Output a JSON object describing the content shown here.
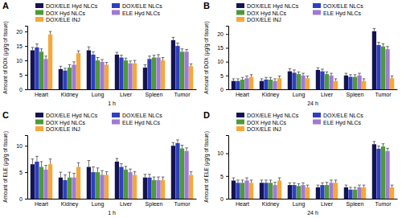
{
  "chart_data": [
    {
      "type": "bar",
      "title": "A",
      "x_label": "1 h",
      "y_label": "Amount of DOX (μg/g of tissue)",
      "categories": [
        "Heart",
        "Kidney",
        "Lung",
        "Liver",
        "Spleen",
        "Tumor"
      ],
      "ylim": [
        0,
        22
      ],
      "yticks": [
        0,
        5,
        10,
        15,
        20
      ],
      "legend": "top",
      "series": [
        {
          "name": "DOX/ELE Hyd NLCs",
          "color": "#141452",
          "values": [
            13.5,
            7,
            13.5,
            12,
            7.5,
            17
          ],
          "errors": [
            1,
            1,
            1.2,
            0.8,
            1,
            1
          ]
        },
        {
          "name": "DOX/ELE NLCs",
          "color": "#2f3fbf",
          "values": [
            14.5,
            6.5,
            12,
            11,
            10.5,
            15
          ],
          "errors": [
            1.2,
            0.8,
            1,
            0.8,
            1,
            1
          ]
        },
        {
          "name": "DOX Hyd NLCs",
          "color": "#4e9a3a",
          "values": [
            13,
            7.5,
            10,
            10,
            11,
            13
          ],
          "errors": [
            1,
            1,
            1,
            0.8,
            0.8,
            1
          ]
        },
        {
          "name": "ELE Hyd NLCs",
          "color": "#a07ad4",
          "values": [
            10.5,
            8.5,
            9.5,
            9,
            11,
            13
          ],
          "errors": [
            1,
            1,
            0.8,
            0.8,
            1,
            0.8
          ]
        },
        {
          "name": "DOX/ELE INJ",
          "color": "#f6a83a",
          "values": [
            19,
            12.5,
            8.5,
            9,
            10,
            8
          ],
          "errors": [
            1,
            0.8,
            0.8,
            1,
            1,
            0.8
          ]
        }
      ]
    },
    {
      "type": "bar",
      "title": "B",
      "x_label": "24 h",
      "y_label": "Amount of DOX (μg/g of tissue)",
      "categories": [
        "Heart",
        "Kidney",
        "Lung",
        "Liver",
        "Spleen",
        "Tumor"
      ],
      "ylim": [
        0,
        23
      ],
      "yticks": [
        0,
        5,
        10,
        15,
        20
      ],
      "legend": "top",
      "series": [
        {
          "name": "DOX/ELE Hyd NLCs",
          "color": "#141452",
          "values": [
            3,
            3,
            6.5,
            7,
            5,
            21
          ],
          "errors": [
            0.8,
            0.8,
            1,
            0.8,
            0.8,
            1
          ]
        },
        {
          "name": "DOX/ELE NLCs",
          "color": "#2f3fbf",
          "values": [
            3,
            3.5,
            6,
            6.5,
            4.5,
            16
          ],
          "errors": [
            0.8,
            0.8,
            1,
            0.8,
            0.8,
            1
          ]
        },
        {
          "name": "DOX Hyd NLCs",
          "color": "#4e9a3a",
          "values": [
            3.5,
            3.5,
            5.5,
            5.5,
            4.5,
            15.5
          ],
          "errors": [
            0.8,
            0.8,
            0.8,
            0.8,
            0.8,
            1
          ]
        },
        {
          "name": "ELE Hyd NLCs",
          "color": "#a07ad4",
          "values": [
            4,
            3,
            5,
            5,
            5,
            14.5
          ],
          "errors": [
            0.8,
            0.8,
            0.8,
            0.8,
            0.8,
            1
          ]
        },
        {
          "name": "DOX/ELE INJ",
          "color": "#f6a83a",
          "values": [
            4.5,
            4,
            4,
            3,
            3,
            4
          ],
          "errors": [
            0.8,
            0.8,
            0.8,
            0.8,
            0.8,
            0.8
          ]
        }
      ]
    },
    {
      "type": "bar",
      "title": "C",
      "x_label": "1 h",
      "y_label": "Amount of ELE (μg/g of tissue)",
      "categories": [
        "Heart",
        "Kidney",
        "Lung",
        "Liver",
        "Spleen",
        "Tumor"
      ],
      "ylim": [
        0,
        12
      ],
      "yticks": [
        0,
        5,
        10
      ],
      "legend": "top",
      "series": [
        {
          "name": "DOX/ELE Hyd NLCs",
          "color": "#141452",
          "values": [
            6.5,
            4,
            6,
            7,
            4,
            10
          ],
          "errors": [
            1,
            1,
            1.2,
            0.6,
            0.6,
            0.6
          ]
        },
        {
          "name": "DOX/ELE NLCs",
          "color": "#2f3fbf",
          "values": [
            7,
            3.5,
            5,
            6,
            4,
            10.5
          ],
          "errors": [
            1,
            1,
            1,
            0.6,
            0.6,
            0.6
          ]
        },
        {
          "name": "DOX Hyd NLCs",
          "color": "#4e9a3a",
          "values": [
            6,
            4,
            5,
            5.5,
            3.5,
            9.5
          ],
          "errors": [
            1,
            1,
            0.8,
            0.6,
            0.6,
            0.6
          ]
        },
        {
          "name": "ELE Hyd NLCs",
          "color": "#a07ad4",
          "values": [
            5.5,
            4,
            4.5,
            5,
            3.5,
            9
          ],
          "errors": [
            0.8,
            0.8,
            0.8,
            0.6,
            0.6,
            0.6
          ]
        },
        {
          "name": "DOX/ELE INJ",
          "color": "#f6a83a",
          "values": [
            6.5,
            6,
            4.5,
            4.5,
            3.5,
            4.5
          ],
          "errors": [
            1,
            0.8,
            0.6,
            0.6,
            0.6,
            0.6
          ]
        }
      ]
    },
    {
      "type": "bar",
      "title": "D",
      "x_label": "24 h",
      "y_label": "Amount of ELE (μg/g of tissue)",
      "categories": [
        "Heart",
        "Kidney",
        "Lung",
        "Liver",
        "Spleen",
        "Tumor"
      ],
      "ylim": [
        0,
        14
      ],
      "yticks": [
        0,
        5,
        10
      ],
      "legend": "top",
      "series": [
        {
          "name": "DOX/ELE Hyd NLCs",
          "color": "#141452",
          "values": [
            4,
            3.5,
            3,
            2.5,
            2.5,
            12
          ],
          "errors": [
            0.6,
            0.6,
            0.5,
            0.5,
            0.5,
            0.6
          ]
        },
        {
          "name": "DOX/ELE NLCs",
          "color": "#2f3fbf",
          "values": [
            3.5,
            3.5,
            3,
            3,
            2,
            11
          ],
          "errors": [
            0.6,
            0.6,
            0.5,
            0.5,
            0.5,
            0.6
          ]
        },
        {
          "name": "DOX Hyd NLCs",
          "color": "#4e9a3a",
          "values": [
            3.5,
            3.5,
            2.8,
            3,
            2,
            11.5
          ],
          "errors": [
            0.6,
            0.6,
            0.5,
            0.6,
            0.5,
            0.6
          ]
        },
        {
          "name": "ELE Hyd NLCs",
          "color": "#a07ad4",
          "values": [
            4,
            3,
            3,
            3.5,
            2.5,
            10.5
          ],
          "errors": [
            0.6,
            0.6,
            0.5,
            0.6,
            0.5,
            0.6
          ]
        },
        {
          "name": "DOX/ELE INJ",
          "color": "#f6a83a",
          "values": [
            3.5,
            4,
            2.5,
            3.5,
            2.5,
            2.5
          ],
          "errors": [
            0.6,
            0.6,
            0.5,
            0.6,
            0.5,
            0.5
          ]
        }
      ]
    }
  ]
}
